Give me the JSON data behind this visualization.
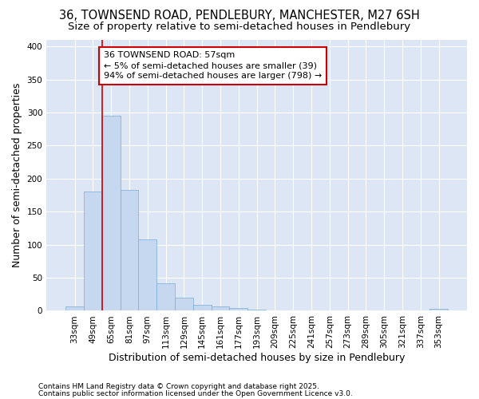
{
  "title1": "36, TOWNSEND ROAD, PENDLEBURY, MANCHESTER, M27 6SH",
  "title2": "Size of property relative to semi-detached houses in Pendlebury",
  "xlabel": "Distribution of semi-detached houses by size in Pendlebury",
  "ylabel": "Number of semi-detached properties",
  "categories": [
    "33sqm",
    "49sqm",
    "65sqm",
    "81sqm",
    "97sqm",
    "113sqm",
    "129sqm",
    "145sqm",
    "161sqm",
    "177sqm",
    "193sqm",
    "209sqm",
    "225sqm",
    "241sqm",
    "257sqm",
    "273sqm",
    "289sqm",
    "305sqm",
    "321sqm",
    "337sqm",
    "353sqm"
  ],
  "values": [
    7,
    180,
    295,
    183,
    108,
    42,
    20,
    9,
    6,
    4,
    2,
    0,
    0,
    0,
    0,
    0,
    0,
    0,
    0,
    0,
    3
  ],
  "bar_color": "#c5d8f0",
  "bar_edge_color": "#7aadd4",
  "annotation_text_line1": "36 TOWNSEND ROAD: 57sqm",
  "annotation_text_line2": "← 5% of semi-detached houses are smaller (39)",
  "annotation_text_line3": "94% of semi-detached houses are larger (798) →",
  "annotation_box_facecolor": "#ffffff",
  "annotation_box_edgecolor": "#cc0000",
  "red_line_color": "#cc0000",
  "ylim": [
    0,
    410
  ],
  "yticks": [
    0,
    50,
    100,
    150,
    200,
    250,
    300,
    350,
    400
  ],
  "bg_color": "#dce6f5",
  "grid_color": "#ffffff",
  "footnote1": "Contains HM Land Registry data © Crown copyright and database right 2025.",
  "footnote2": "Contains public sector information licensed under the Open Government Licence v3.0.",
  "title1_fontsize": 10.5,
  "title2_fontsize": 9.5,
  "axis_label_fontsize": 9,
  "tick_fontsize": 7.5,
  "annotation_fontsize": 8,
  "footnote_fontsize": 6.5
}
